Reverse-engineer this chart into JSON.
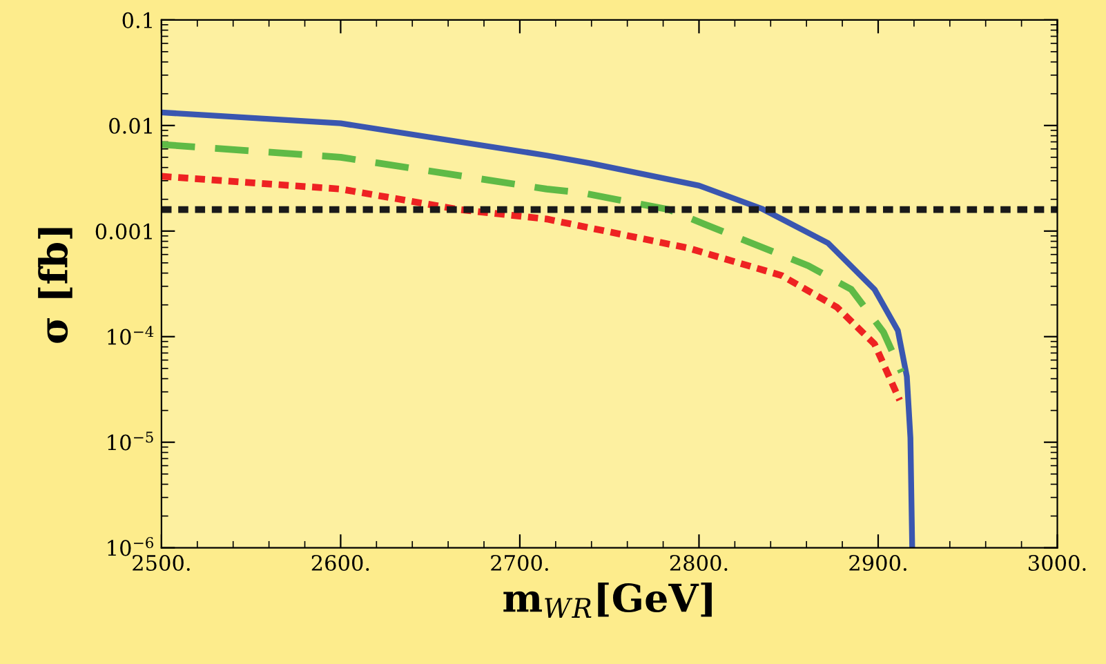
{
  "chart_data": {
    "type": "line",
    "xlabel": "m$_{W}$$_{R}$[GeV]",
    "ylabel": "σ [fb]",
    "log": "y",
    "xlim": [
      2500,
      3000
    ],
    "xticks": [
      {
        "value": 2500,
        "label": "2500."
      },
      {
        "value": 2600,
        "label": "2600."
      },
      {
        "value": 2700,
        "label": "2700."
      },
      {
        "value": 2800,
        "label": "2800."
      },
      {
        "value": 2900,
        "label": "2900."
      },
      {
        "value": 3000,
        "label": "3000."
      }
    ],
    "ylim": [
      1e-06,
      0.1
    ],
    "yticks": [
      {
        "value": 1e-06,
        "label": "10$^{−6}$"
      },
      {
        "value": 1e-05,
        "label": "10$^{−5}$"
      },
      {
        "value": 0.0001,
        "label": "10$^{−4}$"
      },
      {
        "value": 0.001,
        "label": "0.001"
      },
      {
        "value": 0.01,
        "label": "0.01"
      },
      {
        "value": 0.1,
        "label": "0.1"
      }
    ],
    "grid": false,
    "legend": false,
    "series": [
      {
        "color": "#3a56b0",
        "line_style": "solid",
        "x": [
          2500,
          2600,
          2715,
          2739,
          2800,
          2835,
          2872,
          2898,
          2911,
          2916,
          2918,
          2919
        ],
        "values": [
          0.0133,
          0.0105,
          0.0052,
          0.0044,
          0.0027,
          0.00163,
          0.00077,
          0.00028,
          0.000114,
          4.2e-05,
          1.1e-05,
          1e-06
        ]
      },
      {
        "color": "#5fba46",
        "line_style": "dashed",
        "x": [
          2500,
          2600,
          2715,
          2735,
          2783,
          2820,
          2861,
          2885,
          2903,
          2913
        ],
        "values": [
          0.0066,
          0.005,
          0.0025,
          0.0023,
          0.0016,
          0.00089,
          0.00047,
          0.00028,
          0.00011,
          4.6e-05
        ]
      },
      {
        "color": "#ee2222",
        "line_style": "dotted",
        "x": [
          2500,
          2600,
          2666,
          2715,
          2794,
          2846,
          2877,
          2898,
          2912
        ],
        "values": [
          0.0033,
          0.0025,
          0.0016,
          0.0013,
          0.00069,
          0.00038,
          0.00019,
          8.5e-05,
          2.5e-05
        ]
      }
    ],
    "ref_lines": [
      {
        "axis": "y",
        "value": 0.0016,
        "color": "#1a1a1a",
        "line_style": "dotted"
      }
    ]
  }
}
